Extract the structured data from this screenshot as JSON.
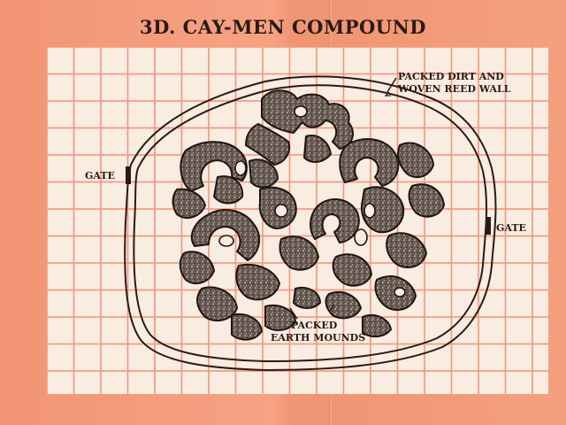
{
  "title": "3D. CAY-MEN COMPOUND",
  "labels": {
    "wall_line1": "PACKED DIRT AND",
    "wall_line2": "WOVEN REED WALL",
    "gate_left": "GATE",
    "gate_right": "GATE",
    "mounds_line1": "PACKED",
    "mounds_line2": "EARTH MOUNDS"
  },
  "colors": {
    "paper_orange": "#f39a78",
    "grid_paper": "#f9ece1",
    "grid_lines": "#f2967a",
    "ink": "#2a1a14"
  }
}
